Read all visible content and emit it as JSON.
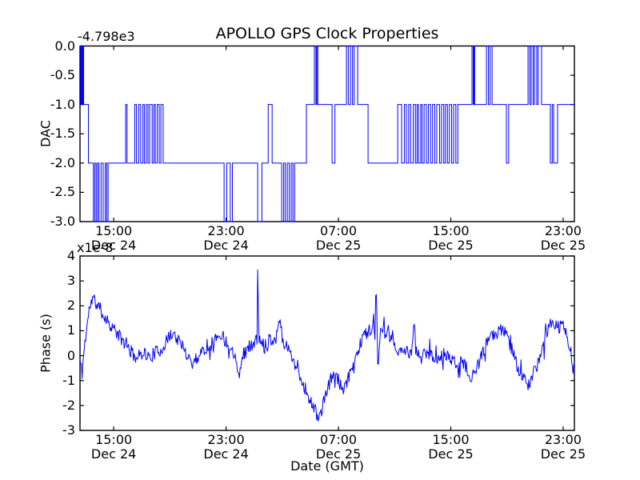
{
  "figure": {
    "background_color": "#ffffff",
    "axes_color": "#000000",
    "text_color": "#000000"
  },
  "chart_data": [
    {
      "type": "line",
      "subplot": "top",
      "title": "APOLLO GPS Clock Properties",
      "ylabel": "DAC",
      "y_offset_label": "-4.798e3",
      "ylim": [
        -3.0,
        0.0
      ],
      "yticks": [
        0.0,
        -0.5,
        -1.0,
        -1.5,
        -2.0,
        -2.5,
        -3.0
      ],
      "ytick_labels": [
        "0.0",
        "-0.5",
        "-1.0",
        "-1.5",
        "-2.0",
        "-2.5",
        "-3.0"
      ],
      "x_unit": "hours since Dec 24 00:00 GMT",
      "xlim_hours": [
        12.6,
        47.8
      ],
      "xticks_hours": [
        15,
        23,
        31,
        39,
        47
      ],
      "xtick_labels": [
        [
          "15:00",
          "Dec 24"
        ],
        [
          "23:00",
          "Dec 24"
        ],
        [
          "07:00",
          "Dec 25"
        ],
        [
          "15:00",
          "Dec 25"
        ],
        [
          "23:00",
          "Dec 25"
        ]
      ],
      "line_color": "#0000ff",
      "grid": false,
      "step_points": [
        [
          12.6,
          0
        ],
        [
          12.64,
          -1
        ],
        [
          12.67,
          0
        ],
        [
          12.7,
          -1
        ],
        [
          12.74,
          0
        ],
        [
          12.78,
          -1
        ],
        [
          12.82,
          0
        ],
        [
          12.86,
          -1
        ],
        [
          13.2,
          -2
        ],
        [
          13.55,
          -3
        ],
        [
          13.65,
          -2
        ],
        [
          13.75,
          -3
        ],
        [
          13.85,
          -2
        ],
        [
          13.95,
          -3
        ],
        [
          14.1,
          -2
        ],
        [
          14.25,
          -3
        ],
        [
          14.4,
          -2
        ],
        [
          14.5,
          -3
        ],
        [
          14.6,
          -2
        ],
        [
          15.85,
          -1
        ],
        [
          15.95,
          -2
        ],
        [
          16.5,
          -1
        ],
        [
          16.62,
          -2
        ],
        [
          16.78,
          -1
        ],
        [
          16.92,
          -2
        ],
        [
          17.08,
          -1
        ],
        [
          17.18,
          -2
        ],
        [
          17.32,
          -1
        ],
        [
          17.44,
          -2
        ],
        [
          17.56,
          -1
        ],
        [
          17.74,
          -2
        ],
        [
          17.86,
          -1
        ],
        [
          17.96,
          -2
        ],
        [
          18.1,
          -1
        ],
        [
          18.24,
          -2
        ],
        [
          18.36,
          -1
        ],
        [
          18.52,
          -2
        ],
        [
          22.86,
          -3
        ],
        [
          23.05,
          -2
        ],
        [
          23.3,
          -3
        ],
        [
          23.45,
          -2
        ],
        [
          25.25,
          -3
        ],
        [
          25.55,
          -2
        ],
        [
          26.0,
          -1
        ],
        [
          26.28,
          -2
        ],
        [
          26.96,
          -3
        ],
        [
          27.1,
          -2
        ],
        [
          27.22,
          -3
        ],
        [
          27.36,
          -2
        ],
        [
          27.5,
          -3
        ],
        [
          27.64,
          -2
        ],
        [
          27.76,
          -3
        ],
        [
          27.88,
          -2
        ],
        [
          28.72,
          -1
        ],
        [
          29.29,
          0
        ],
        [
          29.4,
          -1
        ],
        [
          29.46,
          0
        ],
        [
          29.53,
          -1
        ],
        [
          30.55,
          -2
        ],
        [
          30.75,
          -1
        ],
        [
          31.57,
          0
        ],
        [
          31.7,
          -1
        ],
        [
          31.86,
          0
        ],
        [
          32.0,
          -1
        ],
        [
          32.12,
          0
        ],
        [
          32.37,
          -1
        ],
        [
          33.11,
          -2
        ],
        [
          35.22,
          -1
        ],
        [
          35.5,
          -2
        ],
        [
          35.7,
          -1
        ],
        [
          35.84,
          -2
        ],
        [
          36.0,
          -1
        ],
        [
          36.14,
          -2
        ],
        [
          36.33,
          -1
        ],
        [
          36.48,
          -2
        ],
        [
          36.6,
          -1
        ],
        [
          36.7,
          -2
        ],
        [
          36.86,
          -1
        ],
        [
          36.96,
          -2
        ],
        [
          37.1,
          -1
        ],
        [
          37.26,
          -2
        ],
        [
          37.4,
          -1
        ],
        [
          37.56,
          -2
        ],
        [
          37.7,
          -1
        ],
        [
          37.86,
          -2
        ],
        [
          38.0,
          -1
        ],
        [
          38.2,
          -2
        ],
        [
          38.34,
          -1
        ],
        [
          38.5,
          -2
        ],
        [
          38.62,
          -1
        ],
        [
          38.76,
          -2
        ],
        [
          38.9,
          -1
        ],
        [
          39.06,
          -2
        ],
        [
          39.2,
          -1
        ],
        [
          39.36,
          -2
        ],
        [
          39.5,
          -1
        ],
        [
          40.51,
          0
        ],
        [
          40.6,
          -1
        ],
        [
          40.65,
          0
        ],
        [
          40.7,
          -1
        ],
        [
          41.54,
          0
        ],
        [
          41.68,
          -1
        ],
        [
          41.8,
          0
        ],
        [
          41.94,
          -1
        ],
        [
          42.96,
          -2
        ],
        [
          43.12,
          -1
        ],
        [
          44.5,
          0
        ],
        [
          44.62,
          -1
        ],
        [
          44.72,
          0
        ],
        [
          44.86,
          -1
        ],
        [
          44.96,
          0
        ],
        [
          45.12,
          -1
        ],
        [
          45.22,
          0
        ],
        [
          45.46,
          -1
        ],
        [
          46.09,
          -2
        ],
        [
          46.22,
          -1
        ],
        [
          46.32,
          -2
        ],
        [
          46.6,
          -1
        ]
      ]
    },
    {
      "type": "line",
      "subplot": "bottom",
      "ylabel": "Phase (s)",
      "y_multiplier_label": "x1e-8",
      "xlabel": "Date (GMT)",
      "y_unit": "1e-8 s",
      "ylim": [
        -3,
        4
      ],
      "yticks": [
        4,
        3,
        2,
        1,
        0,
        -1,
        -2,
        -3
      ],
      "ytick_labels": [
        "4",
        "3",
        "2",
        "1",
        "0",
        "-1",
        "-2",
        "-3"
      ],
      "x_unit": "hours since Dec 24 00:00 GMT",
      "xlim_hours": [
        12.6,
        47.8
      ],
      "xticks_hours": [
        15,
        23,
        31,
        39,
        47
      ],
      "xtick_labels": [
        [
          "15:00",
          "Dec 24"
        ],
        [
          "23:00",
          "Dec 24"
        ],
        [
          "07:00",
          "Dec 25"
        ],
        [
          "15:00",
          "Dec 25"
        ],
        [
          "23:00",
          "Dec 25"
        ]
      ],
      "line_color": "#0000ff",
      "grid": false,
      "envelope_points": [
        [
          12.6,
          -0.2
        ],
        [
          12.75,
          -0.7
        ],
        [
          12.9,
          0.3
        ],
        [
          13.1,
          1.2
        ],
        [
          13.3,
          2.0
        ],
        [
          13.55,
          2.3
        ],
        [
          13.75,
          2.1
        ],
        [
          14.0,
          1.9
        ],
        [
          14.3,
          1.6
        ],
        [
          14.7,
          1.3
        ],
        [
          15.1,
          1.0
        ],
        [
          15.5,
          0.7
        ],
        [
          15.9,
          0.4
        ],
        [
          16.3,
          0.1
        ],
        [
          16.7,
          -0.1
        ],
        [
          17.1,
          0.2
        ],
        [
          17.5,
          -0.1
        ],
        [
          17.9,
          0.1
        ],
        [
          18.3,
          0.2
        ],
        [
          18.7,
          0.5
        ],
        [
          19.1,
          0.9
        ],
        [
          19.4,
          0.8
        ],
        [
          19.8,
          0.4
        ],
        [
          20.2,
          0.1
        ],
        [
          20.6,
          -0.3
        ],
        [
          20.9,
          -0.1
        ],
        [
          21.3,
          0.2
        ],
        [
          21.8,
          0.4
        ],
        [
          22.3,
          0.7
        ],
        [
          22.6,
          0.9
        ],
        [
          22.95,
          0.6
        ],
        [
          23.35,
          0.3
        ],
        [
          23.75,
          -0.1
        ],
        [
          23.95,
          -0.8
        ],
        [
          24.15,
          0.0
        ],
        [
          24.55,
          0.3
        ],
        [
          24.95,
          0.5
        ],
        [
          25.2,
          0.6
        ],
        [
          25.25,
          3.45
        ],
        [
          25.35,
          0.6
        ],
        [
          25.7,
          0.4
        ],
        [
          26.1,
          0.7
        ],
        [
          26.5,
          0.6
        ],
        [
          26.84,
          1.6
        ],
        [
          27.0,
          0.6
        ],
        [
          27.2,
          0.5
        ],
        [
          27.5,
          0.2
        ],
        [
          27.9,
          -0.3
        ],
        [
          28.3,
          -0.9
        ],
        [
          28.7,
          -1.4
        ],
        [
          29.05,
          -1.9
        ],
        [
          29.35,
          -2.2
        ],
        [
          29.55,
          -2.5
        ],
        [
          29.8,
          -2.2
        ],
        [
          30.1,
          -1.6
        ],
        [
          30.4,
          -1.0
        ],
        [
          30.7,
          -0.7
        ],
        [
          31.0,
          -1.0
        ],
        [
          31.3,
          -1.5
        ],
        [
          31.6,
          -1.1
        ],
        [
          31.9,
          -0.6
        ],
        [
          32.2,
          -0.1
        ],
        [
          32.5,
          0.4
        ],
        [
          32.8,
          0.8
        ],
        [
          33.1,
          1.0
        ],
        [
          33.4,
          1.1
        ],
        [
          33.6,
          1.0
        ],
        [
          33.68,
          2.95
        ],
        [
          33.76,
          0.9
        ],
        [
          33.82,
          -1.0
        ],
        [
          33.95,
          0.8
        ],
        [
          34.2,
          1.0
        ],
        [
          34.5,
          0.8
        ],
        [
          34.8,
          0.6
        ],
        [
          35.1,
          0.3
        ],
        [
          35.5,
          0.1
        ],
        [
          35.9,
          0.2
        ],
        [
          36.2,
          0.0
        ],
        [
          36.38,
          1.5
        ],
        [
          36.5,
          0.2
        ],
        [
          36.9,
          -0.1
        ],
        [
          37.3,
          0.2
        ],
        [
          37.7,
          0.0
        ],
        [
          38.1,
          -0.2
        ],
        [
          38.5,
          0.1
        ],
        [
          38.9,
          -0.1
        ],
        [
          39.3,
          -0.3
        ],
        [
          39.7,
          -0.2
        ],
        [
          40.1,
          -0.5
        ],
        [
          40.45,
          -1.0
        ],
        [
          40.8,
          -0.6
        ],
        [
          41.2,
          0.0
        ],
        [
          41.6,
          0.5
        ],
        [
          42.0,
          0.8
        ],
        [
          42.4,
          1.0
        ],
        [
          42.7,
          1.1
        ],
        [
          43.0,
          0.7
        ],
        [
          43.4,
          0.2
        ],
        [
          43.8,
          -0.5
        ],
        [
          44.2,
          -0.9
        ],
        [
          44.5,
          -1.3
        ],
        [
          44.8,
          -0.8
        ],
        [
          45.2,
          -0.3
        ],
        [
          45.6,
          0.4
        ],
        [
          45.95,
          1.1
        ],
        [
          46.3,
          1.4
        ],
        [
          46.6,
          1.1
        ],
        [
          46.95,
          1.2
        ],
        [
          47.25,
          0.9
        ],
        [
          47.5,
          0.3
        ],
        [
          47.7,
          -0.5
        ],
        [
          47.8,
          -0.6
        ]
      ],
      "noise": {
        "amplitude": 0.27,
        "spike_probability": 0.05,
        "spike_scale": 2.4,
        "seed": 11,
        "points_per_hour": 20,
        "value_clamp": [
          -2.62,
          3.45
        ]
      }
    }
  ]
}
